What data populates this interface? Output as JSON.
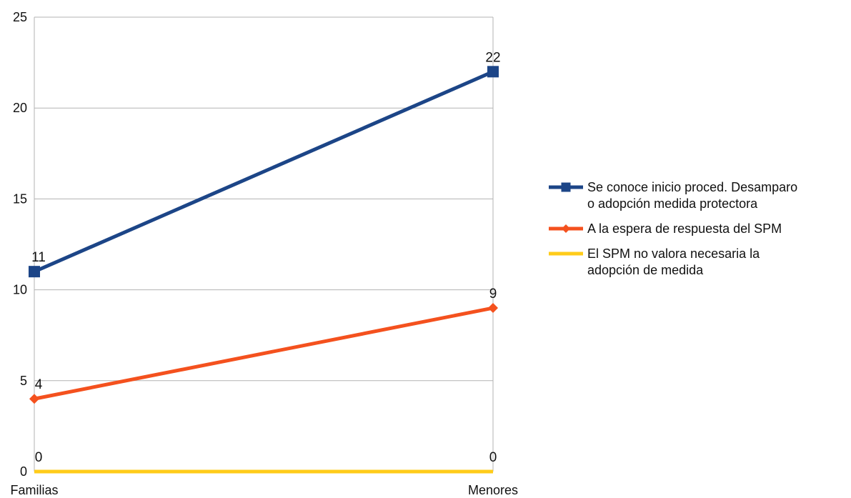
{
  "chart_data": {
    "type": "line",
    "categories": [
      "Familias",
      "Menores"
    ],
    "ylim": [
      0,
      25
    ],
    "yticks": [
      0,
      5,
      10,
      15,
      20,
      25
    ],
    "grid": true,
    "legend_position": "right",
    "series": [
      {
        "name": "Se conoce inicio proced. Desamparo o adopción medida protectora",
        "name_lines": [
          "Se conoce inicio proced. Desamparo",
          "o adopción medida protectora"
        ],
        "values": [
          11,
          22
        ],
        "labels": [
          "11",
          "22"
        ],
        "color": "#1c4587",
        "marker": "square"
      },
      {
        "name": "A la espera de respuesta del SPM",
        "name_lines": [
          "A la espera de respuesta del SPM"
        ],
        "values": [
          4,
          9
        ],
        "labels": [
          "4",
          "9"
        ],
        "color": "#f4511e",
        "marker": "diamond"
      },
      {
        "name": "El SPM no valora necesaria la adopción de medida",
        "name_lines": [
          "El SPM no valora necesaria la",
          "adopción de medida"
        ],
        "values": [
          0,
          0
        ],
        "labels": [
          "0",
          "0"
        ],
        "color": "#ffcc1a",
        "marker": "none"
      }
    ]
  }
}
